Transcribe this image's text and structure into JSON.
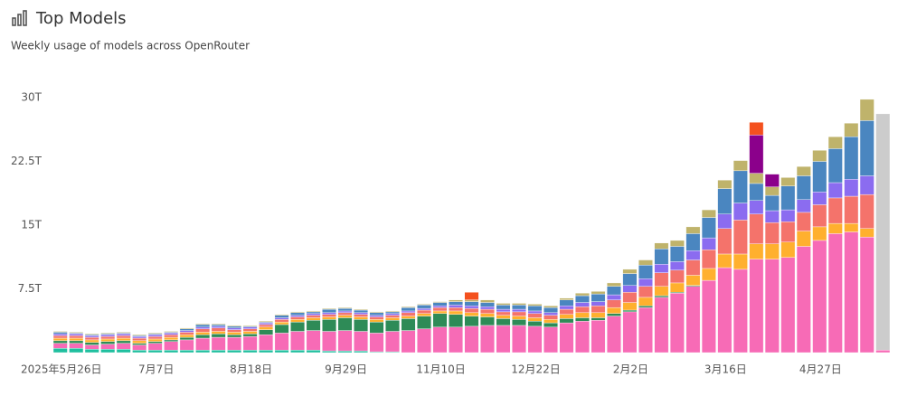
{
  "chart_data": {
    "type": "bar",
    "stacked": true,
    "title": "Top Models",
    "subtitle": "Weekly usage of models across OpenRouter",
    "categories": [
      "2025年5月26日",
      null,
      null,
      null,
      null,
      null,
      "7月7日",
      null,
      null,
      null,
      null,
      null,
      "8月18日",
      null,
      null,
      null,
      null,
      null,
      "9月29日",
      null,
      null,
      null,
      null,
      null,
      "11月10日",
      null,
      null,
      null,
      null,
      null,
      "12月22日",
      null,
      null,
      null,
      null,
      null,
      "2月2日",
      null,
      null,
      null,
      null,
      null,
      "3月16日",
      null,
      null,
      null,
      null,
      null,
      "4月27日",
      null,
      null,
      null,
      null
    ],
    "ylim": [
      0,
      30
    ],
    "yticks": [
      {
        "value": 7.5,
        "label": "7.5T"
      },
      {
        "value": 15,
        "label": "15T"
      },
      {
        "value": 22.5,
        "label": "22.5T"
      },
      {
        "value": 30,
        "label": "30T"
      }
    ],
    "grid": false,
    "series": [
      {
        "color": "#1fbf9f",
        "values": [
          0.5,
          0.5,
          0.4,
          0.4,
          0.4,
          0.3,
          0.3,
          0.3,
          0.3,
          0.3,
          0.3,
          0.3,
          0.3,
          0.3,
          0.3,
          0.3,
          0.3,
          0.2,
          0.2,
          0.2,
          0.1,
          0.1,
          0,
          0,
          0,
          0,
          0,
          0,
          0,
          0,
          0,
          0,
          0,
          0,
          0,
          0,
          0,
          0,
          0,
          0,
          0,
          0,
          0,
          0,
          0,
          0,
          0,
          0,
          0,
          0,
          0,
          0,
          0
        ]
      },
      {
        "color": "#f76bb6",
        "values": [
          0.6,
          0.6,
          0.5,
          0.6,
          0.7,
          0.6,
          0.8,
          1.0,
          1.2,
          1.4,
          1.5,
          1.5,
          1.6,
          1.8,
          2.0,
          2.2,
          2.3,
          2.3,
          2.4,
          2.3,
          2.2,
          2.4,
          2.6,
          2.8,
          3.0,
          3.0,
          3.1,
          3.2,
          3.2,
          3.2,
          3.1,
          3.0,
          3.5,
          3.7,
          3.8,
          4.3,
          4.8,
          5.3,
          6.5,
          7.0,
          7.8,
          8.5,
          10.0,
          9.8,
          11.0,
          11.0,
          11.2,
          12.5,
          13.2,
          14.0,
          14.2,
          13.6,
          0.3
        ]
      },
      {
        "color": "#2e8b57",
        "values": [
          0.3,
          0.3,
          0.3,
          0.3,
          0.3,
          0.2,
          0.2,
          0.2,
          0.3,
          0.4,
          0.4,
          0.3,
          0.3,
          0.6,
          1.0,
          1.1,
          1.2,
          1.4,
          1.5,
          1.4,
          1.3,
          1.3,
          1.4,
          1.5,
          1.6,
          1.5,
          1.2,
          1.0,
          0.8,
          0.7,
          0.6,
          0.5,
          0.5,
          0.4,
          0.3,
          0.3,
          0.2,
          0.2,
          0.2,
          0.1,
          0.1,
          0,
          0,
          0,
          0,
          0,
          0,
          0,
          0,
          0,
          0,
          0,
          0
        ]
      },
      {
        "color": "#ffb02e",
        "values": [
          0.3,
          0.3,
          0.3,
          0.3,
          0.3,
          0.3,
          0.3,
          0.3,
          0.3,
          0.3,
          0.3,
          0.3,
          0.3,
          0.3,
          0.3,
          0.3,
          0.3,
          0.3,
          0.3,
          0.3,
          0.3,
          0.3,
          0.3,
          0.3,
          0.3,
          0.4,
          0.4,
          0.4,
          0.4,
          0.4,
          0.4,
          0.4,
          0.5,
          0.6,
          0.6,
          0.7,
          0.9,
          1.0,
          1.1,
          1.1,
          1.2,
          1.4,
          1.6,
          1.8,
          1.8,
          1.8,
          1.8,
          1.8,
          1.6,
          1.2,
          1.0,
          1.0,
          0
        ]
      },
      {
        "color": "#f4736b",
        "values": [
          0.3,
          0.3,
          0.3,
          0.3,
          0.3,
          0.3,
          0.3,
          0.3,
          0.3,
          0.4,
          0.4,
          0.3,
          0.3,
          0.3,
          0.3,
          0.3,
          0.3,
          0.3,
          0.3,
          0.3,
          0.3,
          0.3,
          0.4,
          0.4,
          0.4,
          0.4,
          0.5,
          0.5,
          0.4,
          0.5,
          0.5,
          0.5,
          0.6,
          0.7,
          0.8,
          0.9,
          1.2,
          1.3,
          1.6,
          1.5,
          1.8,
          2.2,
          3.0,
          4.0,
          3.5,
          2.5,
          2.4,
          2.2,
          2.6,
          3.0,
          3.2,
          4.0,
          0
        ]
      },
      {
        "color": "#8b6cf0",
        "values": [
          0.2,
          0.2,
          0.2,
          0.2,
          0.2,
          0.2,
          0.2,
          0.2,
          0.2,
          0.2,
          0.2,
          0.2,
          0.2,
          0.2,
          0.2,
          0.2,
          0.2,
          0.2,
          0.2,
          0.2,
          0.2,
          0.2,
          0.2,
          0.2,
          0.2,
          0.3,
          0.3,
          0.3,
          0.3,
          0.3,
          0.3,
          0.3,
          0.4,
          0.5,
          0.5,
          0.6,
          0.8,
          0.9,
          1.0,
          1.0,
          1.1,
          1.4,
          1.7,
          2.0,
          1.6,
          1.4,
          1.4,
          1.5,
          1.5,
          1.8,
          2.0,
          2.2,
          0
        ]
      },
      {
        "color": "#4a86c0",
        "values": [
          0.2,
          0.1,
          0.1,
          0.1,
          0.1,
          0.1,
          0.1,
          0.1,
          0.2,
          0.3,
          0.2,
          0.2,
          0.1,
          0.1,
          0.3,
          0.3,
          0.2,
          0.4,
          0.3,
          0.3,
          0.3,
          0.2,
          0.4,
          0.4,
          0.4,
          0.4,
          0.5,
          0.5,
          0.5,
          0.5,
          0.6,
          0.6,
          0.7,
          0.8,
          0.9,
          1.0,
          1.4,
          1.6,
          1.8,
          1.8,
          2.0,
          2.4,
          3.0,
          3.8,
          2.0,
          1.8,
          2.8,
          2.8,
          3.6,
          4.0,
          5.0,
          6.5,
          0
        ]
      },
      {
        "color": "#bfb36b",
        "values": [
          0.1,
          0.1,
          0.1,
          0.1,
          0.1,
          0.1,
          0.1,
          0.1,
          0.1,
          0.1,
          0.1,
          0.1,
          0.1,
          0.1,
          0.1,
          0.1,
          0.1,
          0.1,
          0.1,
          0.1,
          0.1,
          0.1,
          0.1,
          0.1,
          0.1,
          0.2,
          0.2,
          0.3,
          0.2,
          0.2,
          0.2,
          0.2,
          0.2,
          0.3,
          0.3,
          0.4,
          0.5,
          0.6,
          0.7,
          0.7,
          0.8,
          0.9,
          1.0,
          1.2,
          1.2,
          1.0,
          1.0,
          1.1,
          1.3,
          1.4,
          1.6,
          2.5,
          0
        ]
      },
      {
        "color": "#8b008b",
        "values": [
          0,
          0,
          0,
          0,
          0,
          0,
          0,
          0,
          0,
          0,
          0,
          0,
          0,
          0,
          0,
          0,
          0,
          0,
          0,
          0,
          0,
          0,
          0,
          0,
          0,
          0,
          0,
          0,
          0,
          0,
          0,
          0,
          0,
          0,
          0,
          0,
          0,
          0,
          0,
          0,
          0,
          0,
          0,
          0,
          4.5,
          1.5,
          0,
          0,
          0,
          0,
          0,
          0,
          0
        ]
      },
      {
        "color": "#f4511e",
        "values": [
          0,
          0,
          0,
          0,
          0,
          0,
          0,
          0,
          0,
          0,
          0,
          0,
          0,
          0,
          0,
          0,
          0,
          0,
          0,
          0,
          0,
          0,
          0,
          0,
          0,
          0,
          0.9,
          0,
          0,
          0,
          0,
          0,
          0,
          0,
          0,
          0,
          0,
          0,
          0,
          0,
          0,
          0,
          0,
          0,
          1.5,
          0,
          0,
          0,
          0,
          0,
          0,
          0,
          0
        ]
      },
      {
        "color": "#cccccc",
        "values": [
          0,
          0,
          0,
          0,
          0,
          0,
          0,
          0,
          0,
          0,
          0,
          0,
          0,
          0,
          0,
          0,
          0,
          0,
          0,
          0,
          0,
          0,
          0,
          0,
          0,
          0,
          0,
          0,
          0,
          0,
          0,
          0,
          0,
          0,
          0,
          0,
          0,
          0,
          0,
          0,
          0,
          0,
          0,
          0,
          0,
          0,
          0,
          0,
          0,
          0,
          0,
          0,
          27.8
        ]
      }
    ]
  }
}
